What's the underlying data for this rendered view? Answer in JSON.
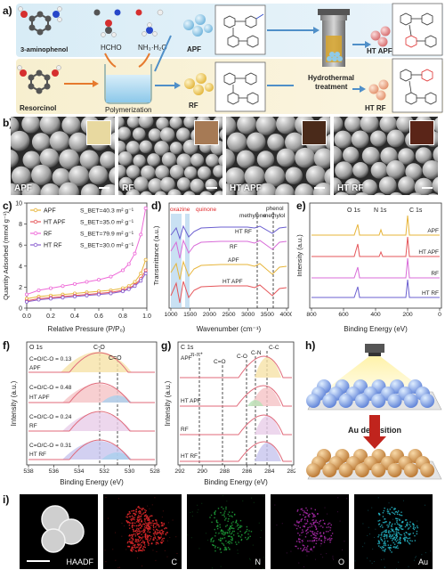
{
  "panel_labels": [
    "a)",
    "b)",
    "c)",
    "d)",
    "e)",
    "f)",
    "g)",
    "h)",
    "i)"
  ],
  "scheme": {
    "precursors_top": {
      "name": "3-aminophenol",
      "reagent1": "HCHO",
      "reagent2": "NH₃·H₂O"
    },
    "legend_atoms": [
      "C",
      "N",
      "O",
      "H"
    ],
    "precursor_bottom": "Resorcinol",
    "step_polymerization": "Polymerization",
    "step_hydrothermal": "Hydrothermal treatment",
    "step_hydrothermal_line1": "Hydrothermal",
    "step_hydrothermal_line2": "treatment",
    "products": [
      "APF",
      "RF",
      "HT APF",
      "HT RF"
    ],
    "colors": {
      "aminophenol_ball": "#8fcbe9",
      "resorcinol_ball": "#f0c65a",
      "ht_apf_ball": "#d9787a",
      "ht_rf_ball": "#e8a07e"
    }
  },
  "sem": {
    "labels": [
      "APF",
      "RF",
      "HT APF",
      "HT RF"
    ],
    "inset_colors": [
      "#e8d9a0",
      "#a67a55",
      "#4a2a1a",
      "#5a2518"
    ]
  },
  "chart_data": [
    {
      "panel": "c",
      "type": "line",
      "xlabel": "Relative Pressure (P/P₀)",
      "ylabel": "Quantity Adsorbed (mmol g⁻¹)",
      "xlim": [
        0.0,
        1.0
      ],
      "ylim": [
        0,
        10
      ],
      "xticks": [
        "0.0",
        "0.2",
        "0.4",
        "0.6",
        "0.8",
        "1.0"
      ],
      "yticks": [
        "0",
        "2",
        "4",
        "6",
        "8",
        "10"
      ],
      "legend": [
        "APF",
        "HT APF",
        "RF",
        "HT RF"
      ],
      "bet": [
        "Sₑₒₜ=40.3 m² g⁻¹",
        "Sₑₒₜ=35.0 m² g⁻¹",
        "Sₑₒₜ=79.9 m² g⁻¹",
        "Sₑₒₜ=30.0 m² g⁻¹"
      ],
      "bet_values": [
        "S",
        "S",
        "S",
        "S"
      ],
      "bet_text": [
        "S_BET=40.3 m² g⁻¹",
        "S_BET=35.0 m² g⁻¹",
        "S_BET=79.9 m² g⁻¹",
        "S_BET=30.0 m² g⁻¹"
      ],
      "series": [
        {
          "name": "APF",
          "color": "#e7b53a",
          "x": [
            0.0,
            0.1,
            0.2,
            0.3,
            0.4,
            0.5,
            0.6,
            0.7,
            0.8,
            0.85,
            0.9,
            0.95,
            0.99
          ],
          "y": [
            0.9,
            1.1,
            1.2,
            1.3,
            1.4,
            1.5,
            1.6,
            1.7,
            1.9,
            2.1,
            2.5,
            3.3,
            4.6
          ]
        },
        {
          "name": "HT APF",
          "color": "#e5565a",
          "x": [
            0.0,
            0.1,
            0.2,
            0.3,
            0.4,
            0.5,
            0.6,
            0.7,
            0.8,
            0.85,
            0.9,
            0.95,
            0.99
          ],
          "y": [
            0.7,
            0.9,
            1.0,
            1.1,
            1.2,
            1.3,
            1.4,
            1.5,
            1.7,
            1.9,
            2.2,
            2.8,
            3.6
          ]
        },
        {
          "name": "RF",
          "color": "#ee6ad8",
          "x": [
            0.0,
            0.1,
            0.2,
            0.3,
            0.4,
            0.5,
            0.6,
            0.7,
            0.8,
            0.85,
            0.9,
            0.95,
            0.99
          ],
          "y": [
            1.3,
            1.7,
            1.9,
            2.1,
            2.3,
            2.5,
            2.7,
            3.0,
            3.6,
            4.2,
            5.2,
            7.0,
            9.5
          ]
        },
        {
          "name": "HT RF",
          "color": "#8a5fd0",
          "x": [
            0.0,
            0.1,
            0.2,
            0.3,
            0.4,
            0.5,
            0.6,
            0.7,
            0.8,
            0.85,
            0.9,
            0.95,
            0.99
          ],
          "y": [
            0.6,
            0.8,
            0.9,
            1.0,
            1.1,
            1.2,
            1.3,
            1.4,
            1.6,
            1.8,
            2.1,
            2.6,
            3.3
          ]
        }
      ]
    },
    {
      "panel": "d",
      "type": "line",
      "xlabel": "Wavenumber (cm⁻¹)",
      "ylabel": "Transmittance (a.u.)",
      "xticks": [
        "1000",
        "1500",
        "2000",
        "2500",
        "3000",
        "3500",
        "4000"
      ],
      "annotations": [
        "oxazine",
        "quinone",
        "methylene",
        "phenol",
        "methylol"
      ],
      "series": [
        {
          "name": "HT RF",
          "color": "#6b5fd0"
        },
        {
          "name": "RF",
          "color": "#d86bd8"
        },
        {
          "name": "APF",
          "color": "#e7b53a"
        },
        {
          "name": "HT APF",
          "color": "#e5565a"
        }
      ]
    },
    {
      "panel": "e",
      "type": "line",
      "xlabel": "Binding Energy (eV)",
      "ylabel": "Intensity (a.u.)",
      "xticks": [
        "800",
        "600",
        "400",
        "200",
        "0"
      ],
      "peaks": [
        "O 1s",
        "N 1s",
        "C 1s"
      ],
      "series": [
        {
          "name": "APF",
          "color": "#e7b53a"
        },
        {
          "name": "HT APF",
          "color": "#e5565a"
        },
        {
          "name": "RF",
          "color": "#d86bd8"
        },
        {
          "name": "HT RF",
          "color": "#6b5fd0"
        }
      ]
    },
    {
      "panel": "f",
      "type": "line",
      "title": "O 1s",
      "xlabel": "Binding Energy (eV)",
      "ylabel": "Intensity (a.u.)",
      "xticks": [
        "538",
        "536",
        "534",
        "532",
        "530",
        "528"
      ],
      "peaks": [
        "C-O",
        "C=O"
      ],
      "samples": [
        "APF",
        "HT APF",
        "RF",
        "HT RF"
      ],
      "ratios": [
        "C=O/C-O = 0.13",
        "C=O/C-O = 0.48",
        "C=O/C-O = 0.24",
        "C=O/C-O = 0.31"
      ]
    },
    {
      "panel": "g",
      "type": "line",
      "title": "C 1s",
      "xlabel": "Binding Energy (eV)",
      "ylabel": "Intensity (a.u.)",
      "xticks": [
        "292",
        "290",
        "288",
        "286",
        "284",
        "282"
      ],
      "peaks": [
        "π-π*",
        "C=O",
        "C-O",
        "C-N",
        "C-C"
      ],
      "samples": [
        "APF",
        "HT APF",
        "RF",
        "HT RF"
      ]
    }
  ],
  "deposition": {
    "label": "Au deposition"
  },
  "eds": {
    "labels": [
      "HAADF",
      "C",
      "N",
      "O",
      "Au"
    ],
    "colors": [
      "#dddddd",
      "#e0282a",
      "#1ea03a",
      "#b02ab0",
      "#26b9c9"
    ]
  }
}
